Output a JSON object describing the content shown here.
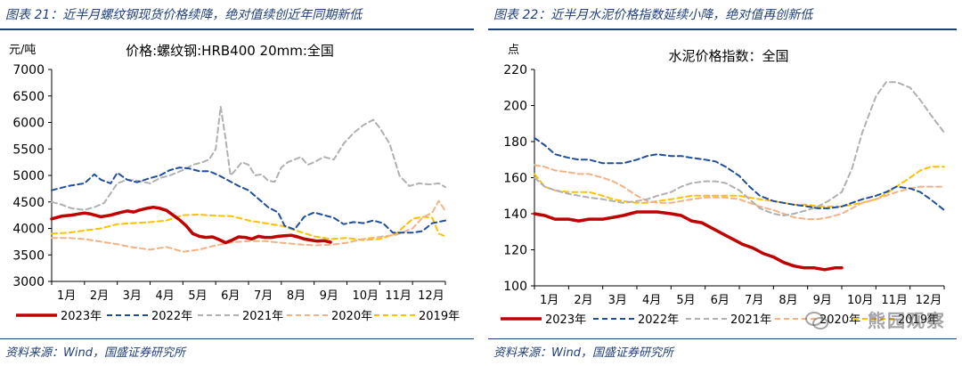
{
  "left": {
    "figure_title": "图表 21：近半月螺纹钢现货价格续降，绝对值续创近年同期新低",
    "source": "资料来源：Wind，国盛证券研究所"
  },
  "right": {
    "figure_title": "图表 22：近半月水泥价格指数延续小降，绝对值再创新低",
    "source": "资料来源：Wind，国盛证券研究所",
    "watermark": "熊园观察"
  },
  "chart_data": [
    {
      "type": "line",
      "title": "价格:螺纹钢:HRB400 20mm:全国",
      "ylabel": "元/吨",
      "ylim": [
        3000,
        7000
      ],
      "yticks": [
        3000,
        3500,
        4000,
        4500,
        5000,
        5500,
        6000,
        6500,
        7000
      ],
      "categories": [
        "1月",
        "2月",
        "3月",
        "4月",
        "5月",
        "6月",
        "7月",
        "8月",
        "9月",
        "10月",
        "11月",
        "12月"
      ],
      "xlim": [
        0,
        12
      ],
      "grid": false,
      "legend_position": "bottom",
      "series": [
        {
          "name": "2023年",
          "color": "#c00000",
          "dash": "solid",
          "width": 3.5,
          "x": [
            0,
            0.3,
            0.6,
            1.0,
            1.2,
            1.5,
            1.8,
            2.1,
            2.3,
            2.5,
            2.7,
            2.9,
            3.1,
            3.3,
            3.5,
            3.7,
            3.9,
            4.1,
            4.3,
            4.5,
            4.7,
            4.9,
            5.1,
            5.3,
            5.5,
            5.7,
            5.9,
            6.1,
            6.3,
            6.5,
            6.7,
            6.9,
            7.1,
            7.3,
            7.5,
            7.7,
            7.9,
            8.1,
            8.3,
            8.5
          ],
          "y": [
            4180,
            4230,
            4250,
            4290,
            4270,
            4220,
            4250,
            4300,
            4330,
            4310,
            4350,
            4380,
            4400,
            4380,
            4340,
            4250,
            4160,
            4050,
            3900,
            3850,
            3830,
            3840,
            3790,
            3730,
            3780,
            3840,
            3830,
            3800,
            3850,
            3830,
            3830,
            3850,
            3860,
            3870,
            3840,
            3800,
            3780,
            3760,
            3770,
            3740
          ]
        },
        {
          "name": "2022年",
          "color": "#1f4e9e",
          "dash": "6 4",
          "width": 2,
          "x": [
            0,
            0.5,
            1.0,
            1.3,
            1.5,
            1.8,
            2.0,
            2.3,
            2.6,
            3.0,
            3.3,
            3.6,
            3.9,
            4.2,
            4.5,
            4.8,
            5.1,
            5.4,
            5.7,
            6.0,
            6.3,
            6.6,
            6.9,
            7.1,
            7.4,
            7.7,
            8.0,
            8.3,
            8.6,
            8.9,
            9.2,
            9.5,
            9.8,
            10.1,
            10.4,
            10.7,
            11.0,
            11.3,
            11.6,
            12.0
          ],
          "y": [
            4720,
            4800,
            4850,
            5020,
            4920,
            4850,
            5050,
            4920,
            4870,
            4950,
            5000,
            5100,
            5150,
            5130,
            5080,
            5080,
            5000,
            4900,
            4800,
            4720,
            4560,
            4400,
            4300,
            4050,
            3980,
            4220,
            4300,
            4250,
            4200,
            4080,
            4120,
            4100,
            4150,
            4100,
            3920,
            3920,
            3920,
            3950,
            4100,
            4150
          ]
        },
        {
          "name": "2021年",
          "color": "#b0b0b0",
          "dash": "6 4",
          "width": 2,
          "x": [
            0,
            0.3,
            0.6,
            1.0,
            1.3,
            1.6,
            2.0,
            2.3,
            2.6,
            3.0,
            3.3,
            3.6,
            4.0,
            4.3,
            4.6,
            4.8,
            5.0,
            5.15,
            5.3,
            5.45,
            5.6,
            5.8,
            6.0,
            6.2,
            6.4,
            6.6,
            6.8,
            7.0,
            7.2,
            7.4,
            7.6,
            7.8,
            8.0,
            8.3,
            8.6,
            8.9,
            9.2,
            9.5,
            9.8,
            10.0,
            10.3,
            10.6,
            10.9,
            11.2,
            11.5,
            11.8,
            12.0
          ],
          "y": [
            4500,
            4450,
            4380,
            4350,
            4400,
            4480,
            4850,
            4920,
            4900,
            4850,
            4950,
            5000,
            5100,
            5200,
            5250,
            5300,
            5500,
            6300,
            5700,
            5000,
            5100,
            5250,
            5200,
            5000,
            5020,
            4900,
            4880,
            5150,
            5250,
            5300,
            5350,
            5200,
            5250,
            5350,
            5300,
            5600,
            5800,
            5950,
            6050,
            5900,
            5600,
            5000,
            4800,
            4850,
            4830,
            4850,
            4780
          ]
        },
        {
          "name": "2020年",
          "color": "#f4b183",
          "dash": "6 4",
          "width": 2,
          "x": [
            0,
            0.5,
            1.0,
            1.5,
            2.0,
            2.5,
            3.0,
            3.5,
            4.0,
            4.5,
            5.0,
            5.5,
            6.0,
            6.5,
            7.0,
            7.5,
            8.0,
            8.5,
            9.0,
            9.5,
            10.0,
            10.5,
            11.0,
            11.3,
            11.6,
            11.8,
            12.0
          ],
          "y": [
            3820,
            3820,
            3800,
            3750,
            3700,
            3640,
            3600,
            3650,
            3560,
            3600,
            3680,
            3740,
            3760,
            3760,
            3730,
            3700,
            3680,
            3690,
            3730,
            3800,
            3840,
            3880,
            4000,
            4200,
            4300,
            4520,
            4330
          ]
        },
        {
          "name": "2019年",
          "color": "#ffc000",
          "dash": "6 4",
          "width": 2,
          "x": [
            0,
            0.5,
            1.0,
            1.5,
            2.0,
            2.5,
            3.0,
            3.5,
            4.0,
            4.5,
            5.0,
            5.5,
            6.0,
            6.5,
            7.0,
            7.5,
            8.0,
            8.5,
            9.0,
            9.5,
            10.0,
            10.5,
            11.0,
            11.3,
            11.6,
            11.8,
            12.0
          ],
          "y": [
            3900,
            3920,
            3960,
            4000,
            4080,
            4100,
            4120,
            4150,
            4250,
            4260,
            4240,
            4230,
            4150,
            4100,
            4050,
            3950,
            3850,
            3800,
            3820,
            3780,
            3800,
            3900,
            4180,
            4220,
            4200,
            3900,
            3850
          ]
        }
      ]
    },
    {
      "type": "line",
      "title": "水泥价格指数：全国",
      "ylabel": "点",
      "ylim": [
        100,
        220
      ],
      "yticks": [
        100,
        120,
        140,
        160,
        180,
        200,
        220
      ],
      "categories": [
        "1月",
        "2月",
        "3月",
        "4月",
        "5月",
        "6月",
        "7月",
        "8月",
        "9月",
        "10月",
        "11月",
        "12月"
      ],
      "xlim": [
        0,
        12
      ],
      "grid": false,
      "legend_position": "bottom",
      "series": [
        {
          "name": "2023年",
          "color": "#c00000",
          "dash": "solid",
          "width": 3.5,
          "x": [
            0,
            0.3,
            0.6,
            1.0,
            1.3,
            1.6,
            2.0,
            2.3,
            2.6,
            3.0,
            3.3,
            3.6,
            4.0,
            4.3,
            4.6,
            4.9,
            5.2,
            5.5,
            5.8,
            6.1,
            6.4,
            6.7,
            7.0,
            7.3,
            7.6,
            7.9,
            8.2,
            8.5,
            8.8,
            9.0
          ],
          "y": [
            140,
            139,
            137,
            137,
            136,
            137,
            137,
            138,
            139,
            141,
            141,
            141,
            140,
            139,
            136,
            135,
            132,
            129,
            126,
            123,
            121,
            118,
            116,
            113,
            111,
            110,
            110,
            109,
            110,
            110
          ]
        },
        {
          "name": "2022年",
          "color": "#1f4e9e",
          "dash": "6 4",
          "width": 2,
          "x": [
            0,
            0.3,
            0.6,
            1.0,
            1.3,
            1.6,
            2.0,
            2.3,
            2.6,
            3.0,
            3.3,
            3.6,
            4.0,
            4.3,
            4.6,
            5.0,
            5.3,
            5.6,
            6.0,
            6.3,
            6.6,
            7.0,
            7.3,
            7.6,
            8.0,
            8.3,
            8.6,
            9.0,
            9.3,
            9.6,
            10.0,
            10.3,
            10.6,
            11.0,
            11.3,
            11.6,
            12.0
          ],
          "y": [
            182,
            178,
            173,
            171,
            170,
            170,
            168,
            168,
            168,
            170,
            172,
            173,
            172,
            172,
            171,
            170,
            169,
            166,
            161,
            155,
            150,
            147,
            146,
            145,
            144,
            143,
            143,
            144,
            146,
            148,
            150,
            152,
            155,
            154,
            152,
            148,
            142
          ]
        },
        {
          "name": "2021年",
          "color": "#b0b0b0",
          "dash": "6 4",
          "width": 2,
          "x": [
            0,
            0.3,
            0.6,
            1.0,
            1.3,
            1.6,
            2.0,
            2.3,
            2.6,
            3.0,
            3.3,
            3.6,
            4.0,
            4.3,
            4.6,
            5.0,
            5.3,
            5.6,
            6.0,
            6.3,
            6.6,
            7.0,
            7.3,
            7.6,
            8.0,
            8.3,
            8.6,
            9.0,
            9.3,
            9.6,
            10.0,
            10.3,
            10.6,
            11.0,
            11.3,
            11.6,
            12.0
          ],
          "y": [
            160,
            155,
            153,
            151,
            150,
            149,
            148,
            147,
            146,
            147,
            148,
            150,
            152,
            155,
            157,
            158,
            158,
            157,
            153,
            148,
            143,
            140,
            139,
            140,
            142,
            144,
            147,
            152,
            165,
            185,
            205,
            213,
            213,
            210,
            203,
            195,
            185
          ]
        },
        {
          "name": "2020年",
          "color": "#f4b183",
          "dash": "6 4",
          "width": 2,
          "x": [
            0,
            0.3,
            0.6,
            1.0,
            1.3,
            1.6,
            2.0,
            2.3,
            2.6,
            3.0,
            3.3,
            3.6,
            4.0,
            4.3,
            4.6,
            5.0,
            5.3,
            5.6,
            6.0,
            6.3,
            6.6,
            7.0,
            7.3,
            7.6,
            8.0,
            8.3,
            8.6,
            9.0,
            9.3,
            9.6,
            10.0,
            10.3,
            10.6,
            11.0,
            11.3,
            11.6,
            12.0
          ],
          "y": [
            167,
            166,
            164,
            163,
            162,
            162,
            160,
            158,
            155,
            150,
            147,
            146,
            146,
            147,
            148,
            149,
            149,
            149,
            148,
            146,
            144,
            142,
            140,
            138,
            137,
            137,
            138,
            140,
            143,
            146,
            148,
            150,
            152,
            154,
            155,
            155,
            155
          ]
        },
        {
          "name": "2019年",
          "color": "#ffc000",
          "dash": "6 4",
          "width": 2,
          "x": [
            0,
            0.3,
            0.6,
            1.0,
            1.3,
            1.6,
            2.0,
            2.3,
            2.6,
            3.0,
            3.3,
            3.6,
            4.0,
            4.3,
            4.6,
            5.0,
            5.3,
            5.6,
            6.0,
            6.3,
            6.6,
            7.0,
            7.3,
            7.6,
            8.0,
            8.3,
            8.6,
            9.0,
            9.3,
            9.6,
            10.0,
            10.3,
            10.6,
            11.0,
            11.3,
            11.6,
            12.0
          ],
          "y": [
            162,
            155,
            153,
            152,
            152,
            152,
            150,
            148,
            147,
            146,
            146,
            147,
            148,
            149,
            150,
            150,
            150,
            150,
            150,
            149,
            148,
            147,
            146,
            145,
            145,
            144,
            144,
            144,
            145,
            146,
            148,
            151,
            155,
            160,
            164,
            166,
            166
          ]
        }
      ]
    }
  ]
}
